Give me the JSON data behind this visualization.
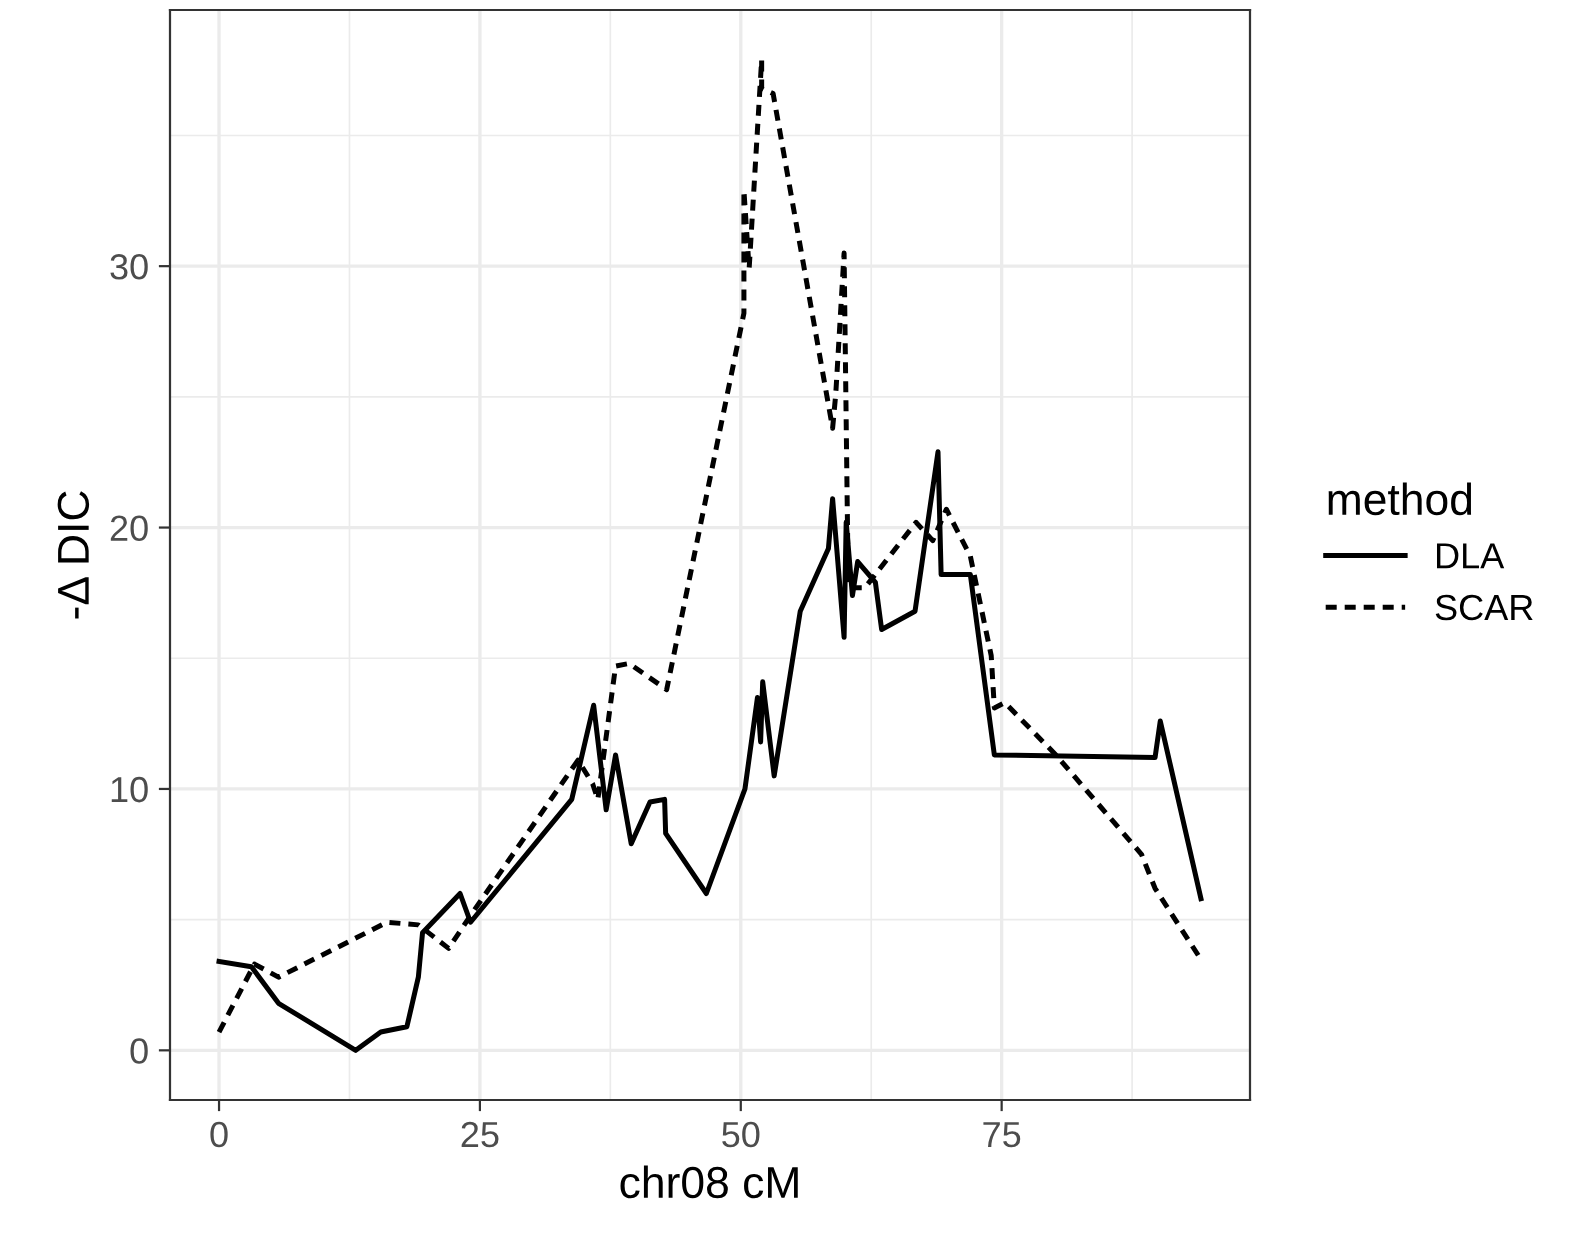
{
  "chart_data": {
    "type": "line",
    "xlabel": "chr08 cM",
    "ylabel": "-Δ DIC",
    "legend_title": "method",
    "legend": "right",
    "grid": true,
    "xlim": [
      -4.7,
      98.8
    ],
    "xticks": [
      0,
      25,
      50,
      75
    ],
    "ylim": [
      -1.9,
      39.8
    ],
    "yticks": [
      0,
      10,
      20,
      30
    ],
    "series": [
      {
        "name": "DLA",
        "color": "#000000",
        "line_style": "solid",
        "x": [
          0,
          3.1,
          5.7,
          13.1,
          15.5,
          18,
          19.1,
          19.5,
          23.1,
          24.1,
          33.8,
          35.9,
          37.1,
          38,
          39.5,
          41.3,
          42.7,
          42.8,
          46.7,
          50.4,
          51.6,
          51.9,
          52.1,
          53.2,
          55.7,
          58.4,
          58.8,
          59.9,
          60.1,
          60.7,
          61.2,
          62.9,
          63.5,
          66.7,
          68.9,
          69.2,
          72,
          74.3,
          89.7,
          90.2,
          94.1
        ],
        "values": [
          3.4,
          3.2,
          1.8,
          0,
          0.7,
          0.9,
          2.8,
          4.5,
          6.0,
          4.9,
          9.6,
          13.2,
          9.2,
          11.3,
          7.9,
          9.5,
          9.6,
          8.3,
          6.0,
          10.0,
          13.5,
          11.8,
          14.1,
          10.5,
          16.8,
          19.2,
          21.1,
          15.8,
          20.2,
          17.4,
          18.7,
          17.9,
          16.1,
          16.8,
          22.9,
          18.2,
          18.2,
          11.3,
          11.2,
          12.6,
          5.8
        ]
      },
      {
        "name": "SCAR",
        "color": "#000000",
        "line_style": "dotted",
        "x": [
          0,
          3.4,
          5.7,
          16.1,
          19.1,
          22,
          24,
          34.4,
          35.8,
          36.3,
          38,
          39.3,
          42.9,
          50.3,
          50.3,
          50.8,
          52,
          52,
          53.1,
          58.8,
          59.1,
          59.9,
          60.3,
          61.9,
          66.8,
          68.4,
          69.7,
          72,
          74,
          74.3,
          75.3,
          80.2,
          88.4,
          89.7,
          93.9
        ],
        "values": [
          0.7,
          3.3,
          2.8,
          4.9,
          4.8,
          3.9,
          5.1,
          11.1,
          10.2,
          9.6,
          14.7,
          14.8,
          13.8,
          28.2,
          32.9,
          29.9,
          37.9,
          36.8,
          36.6,
          23.8,
          25.1,
          30.5,
          17.7,
          17.7,
          20.2,
          19.5,
          20.7,
          18.9,
          15.1,
          13.1,
          13.3,
          11.3,
          7.5,
          6.2,
          3.6
        ]
      }
    ]
  }
}
